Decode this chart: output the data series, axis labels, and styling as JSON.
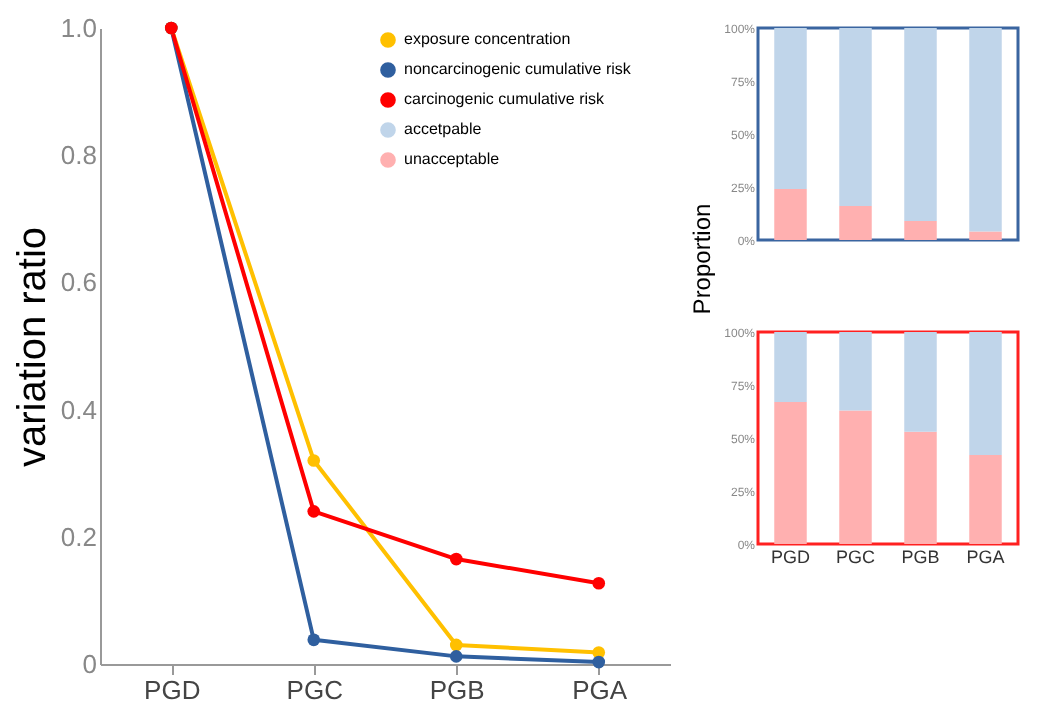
{
  "chart_data": [
    {
      "type": "line",
      "ylabel": "variation ratio",
      "categories": [
        "PGD",
        "PGC",
        "PGB",
        "PGA"
      ],
      "ylim": [
        0,
        1
      ],
      "yticks": [
        0,
        {
          "value": 0.2,
          "label": "0.2"
        },
        {
          "value": 0.4,
          "label": "0.4"
        },
        {
          "value": 0.6,
          "label": "0.6"
        },
        {
          "value": 0.8,
          "label": "0.8"
        },
        {
          "value": 1,
          "label": "1.0"
        }
      ],
      "grid": false,
      "marker": "circle",
      "line_style": "solid",
      "legend": "top right",
      "series": [
        {
          "name": "exposure concentration",
          "color": "#ffc000",
          "values": [
            1,
            0.32,
            0.03,
            0.018
          ]
        },
        {
          "name": "noncarcinogenic cumulative risk",
          "color": "#2f5f9f",
          "values": [
            1,
            0.038,
            0.012,
            0.003
          ]
        },
        {
          "name": "carcinogenic cumulative risk",
          "color": "#ff0000",
          "values": [
            1,
            0.24,
            0.165,
            0.127
          ]
        }
      ]
    },
    {
      "type": "bar",
      "stacked": true,
      "ylabel": "Proportion",
      "categories": [
        "PGD",
        "PGC",
        "PGB",
        "PGA"
      ],
      "ylim": [
        0,
        100
      ],
      "yticks": [
        {
          "value": 0,
          "label": "0%"
        },
        {
          "value": 25,
          "label": "25%"
        },
        {
          "value": 50,
          "label": "50%"
        },
        {
          "value": 75,
          "label": "75%"
        },
        {
          "value": 100,
          "label": "100%"
        }
      ],
      "tick_labels": "y",
      "grid": false,
      "legend": "left",
      "series": [
        {
          "name": "unacceptable",
          "color": "#ffb0b0",
          "values": [
            24,
            16,
            9,
            4
          ]
        },
        {
          "name": "accetpable",
          "color": "#c0d5ea",
          "values": [
            76,
            84,
            91,
            96
          ]
        }
      ]
    },
    {
      "type": "bar",
      "stacked": true,
      "legend": "top left",
      "categories": [
        "PGD",
        "PGC",
        "PGB",
        "PGA"
      ],
      "ylim": [
        0,
        100
      ],
      "yticks": [
        {
          "value": 0,
          "label": "0%"
        },
        {
          "value": 25,
          "label": "25%"
        },
        {
          "value": 50,
          "label": "50%"
        },
        {
          "value": 75,
          "label": "75%"
        },
        {
          "value": 100,
          "label": "100%"
        }
      ],
      "grid": false,
      "series": [
        {
          "name": "unacceptable",
          "color": "#ffb0b0",
          "values": [
            67,
            63,
            53,
            42
          ]
        },
        {
          "name": "accetpable",
          "color": "#c0d5ea",
          "values": [
            33,
            37,
            47,
            58
          ]
        }
      ]
    }
  ]
}
